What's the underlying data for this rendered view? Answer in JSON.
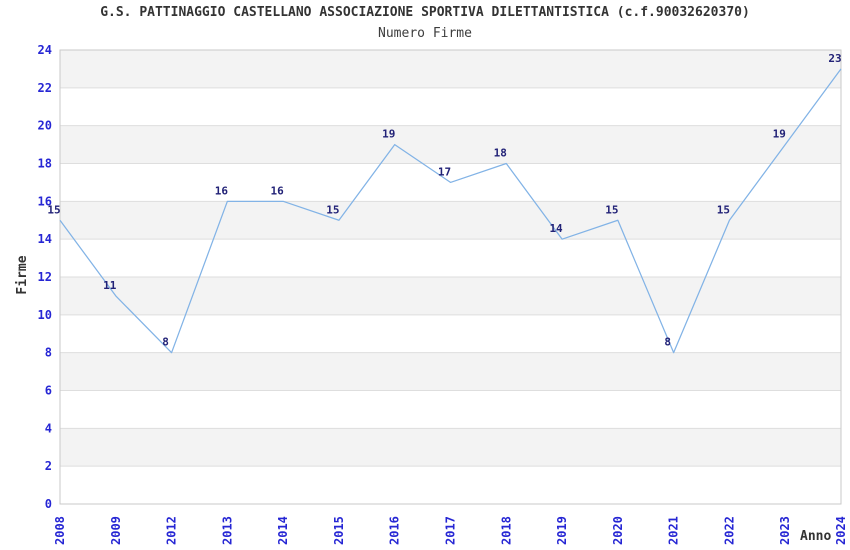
{
  "chart_data": {
    "type": "line",
    "title": "G.S. PATTINAGGIO CASTELLANO ASSOCIAZIONE SPORTIVA DILETTANTISTICA (c.f.90032620370)",
    "subtitle": "Numero Firme",
    "xlabel": "Anno",
    "ylabel": "Firme",
    "categories": [
      "2008",
      "2009",
      "2012",
      "2013",
      "2014",
      "2015",
      "2016",
      "2017",
      "2018",
      "2019",
      "2020",
      "2021",
      "2022",
      "2023",
      "2024"
    ],
    "values": [
      15,
      11,
      8,
      16,
      16,
      15,
      19,
      17,
      18,
      14,
      15,
      8,
      15,
      19,
      23
    ],
    "ylim": [
      0,
      24
    ],
    "ytick_step": 2,
    "grid": "horizontal-bands-alternating",
    "legend": "none",
    "colors": {
      "line": "#82b3e6",
      "tick_label": "#2626d4",
      "point_label": "#222277",
      "band": "#f3f3f3",
      "band_alt": "#ffffff",
      "grid_line": "#dedede",
      "plot_border": "#c9c9c9",
      "text": "#333333"
    }
  }
}
